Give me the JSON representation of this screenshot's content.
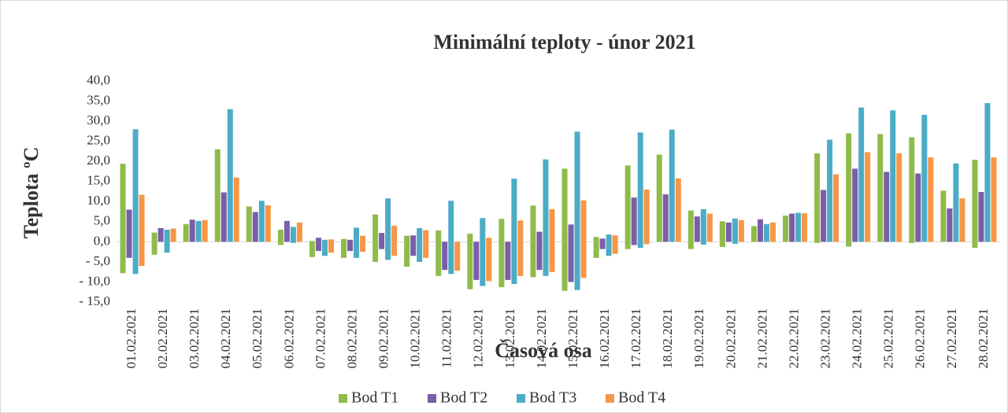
{
  "chart_data": {
    "type": "bar",
    "title": "Minimální teploty - únor 2021",
    "x_label": "Časová osa",
    "y_label": "Teplota ºC",
    "categories": [
      "01.02.2021",
      "02.02.2021",
      "03.02.2021",
      "04.02.2021",
      "05.02.2021",
      "06.02.2021",
      "07.02.2021",
      "08.02.2021",
      "09.02.2021",
      "10.02.2021",
      "11.02.2021",
      "12.02.2021",
      "13.02.2021",
      "14.02.2021",
      "15.02.2021",
      "16.02.2021",
      "17.02.2021",
      "18.02.2021",
      "19.02.2021",
      "20.02.2021",
      "21.02.2021",
      "22.02.2021",
      "23.02.2021",
      "24.02.2021",
      "25.02.2021",
      "26.02.2021",
      "27.02.2021",
      "28.02.2021"
    ],
    "series": [
      {
        "name": "Bod T1",
        "color": "#8fbb4a",
        "values": [
          19.4,
          2.3,
          4.4,
          23,
          8.8,
          3,
          0.2,
          0.7,
          6.8,
          1.5,
          2.8,
          2,
          5.7,
          9,
          18.2,
          1.2,
          19,
          21.7,
          7.8,
          5.1,
          3.9,
          6.5,
          22,
          27,
          26.8,
          26,
          12.7,
          20.4
        ],
        "values_min": [
          -7.8,
          -3.2,
          0,
          0,
          0,
          -0.8,
          -3.8,
          -4,
          -5,
          -6.2,
          -8.5,
          -11.8,
          -11.3,
          -8.8,
          -12.2,
          -4,
          -1.8,
          0,
          -1.8,
          -1.3,
          0,
          0,
          -0.3,
          -1.2,
          0,
          -0.3,
          0,
          -1.5
        ]
      },
      {
        "name": "Bod T2",
        "color": "#7a5ea8",
        "values": [
          8,
          3.4,
          5.5,
          12.3,
          7.4,
          5.2,
          1,
          0.5,
          2.2,
          1.6,
          0,
          0,
          0,
          2.5,
          4.3,
          0.8,
          11,
          11.8,
          6.3,
          4.8,
          5.6,
          7,
          12.9,
          18.2,
          17.4,
          17,
          8.3,
          12.4
        ],
        "values_min": [
          -4,
          0,
          0,
          0,
          0,
          0,
          -2.3,
          -2.3,
          -1.8,
          -3.5,
          -7,
          -9.5,
          -9.5,
          -7,
          -10,
          -1.8,
          -0.8,
          0,
          0,
          0,
          0,
          0,
          0,
          0,
          0,
          0,
          0,
          0
        ]
      },
      {
        "name": "Bod T3",
        "color": "#4bacc6",
        "values": [
          28,
          3,
          5.2,
          33,
          10.2,
          3.7,
          0.5,
          3.5,
          10.8,
          3.4,
          10.2,
          5.9,
          15.7,
          20.5,
          27.4,
          1.8,
          27.2,
          27.9,
          8.1,
          5.8,
          4.4,
          7.2,
          25.4,
          33.4,
          32.7,
          31.6,
          19.5,
          34.5
        ],
        "values_min": [
          -8,
          -2.7,
          0,
          0,
          0,
          -0.3,
          -3.5,
          -4,
          -4.5,
          -5,
          -8,
          -11,
          -10.5,
          -8.5,
          -12,
          -3.5,
          -1.5,
          0,
          -0.7,
          -0.5,
          0,
          0,
          0,
          0,
          0,
          0,
          0,
          0
        ]
      },
      {
        "name": "Bod T4",
        "color": "#f79646",
        "values": [
          11.7,
          3.3,
          5.4,
          16,
          9.1,
          4.8,
          0.6,
          1.5,
          4,
          2.9,
          0,
          1,
          5.3,
          8.1,
          10.3,
          1.6,
          13,
          15.8,
          7,
          5.4,
          4.8,
          7.1,
          16.8,
          22.3,
          22,
          21,
          10.8,
          21
        ],
        "values_min": [
          -6,
          0,
          0,
          0,
          0,
          0,
          -2.7,
          -2.5,
          -3.5,
          -4,
          -7.2,
          -9.8,
          -8.5,
          -7.5,
          -9,
          -3,
          -0.6,
          0,
          0,
          0,
          0,
          0,
          0,
          0,
          0,
          0,
          0,
          0
        ]
      }
    ],
    "ylim": [
      -15,
      40
    ],
    "yticks": [
      {
        "value": -15,
        "label": "- 15,0"
      },
      {
        "value": -10,
        "label": "- 10,0"
      },
      {
        "value": -5,
        "label": "- 5,0"
      },
      {
        "value": 0,
        "label": "0,0"
      },
      {
        "value": 5,
        "label": "5,0"
      },
      {
        "value": 10,
        "label": "10,0"
      },
      {
        "value": 15,
        "label": "15,0"
      },
      {
        "value": 20,
        "label": "20,0"
      },
      {
        "value": 25,
        "label": "25,0"
      },
      {
        "value": 30,
        "label": "30,0"
      },
      {
        "value": 35,
        "label": "35,0"
      },
      {
        "value": 40,
        "label": "40,0"
      }
    ],
    "legend": "bottom"
  }
}
